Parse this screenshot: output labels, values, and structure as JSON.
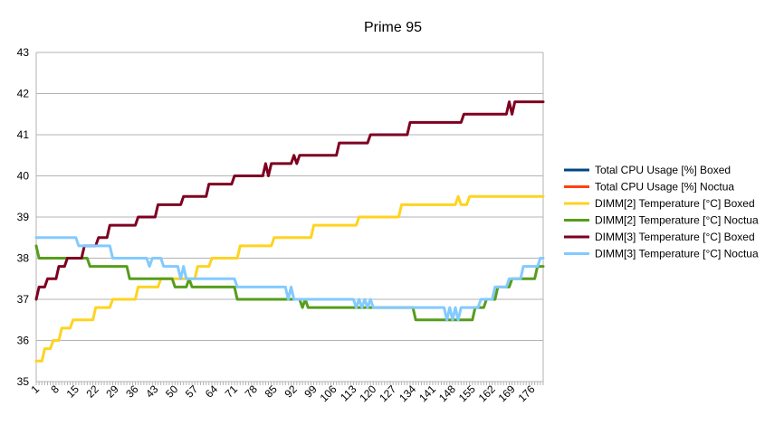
{
  "chart_data": {
    "type": "line",
    "title": "Prime 95",
    "xlabel": "",
    "ylabel": "",
    "ylim": [
      35,
      43
    ],
    "yticks": [
      35,
      36,
      37,
      38,
      39,
      40,
      41,
      42,
      43
    ],
    "xlim": [
      1,
      180
    ],
    "xticks": [
      1,
      8,
      15,
      22,
      29,
      36,
      43,
      50,
      57,
      64,
      71,
      78,
      85,
      92,
      99,
      106,
      113,
      120,
      127,
      134,
      141,
      148,
      155,
      162,
      169,
      176
    ],
    "grid": "horizontal",
    "legend_position": "right",
    "series": [
      {
        "name": "Total CPU Usage [%] Boxed",
        "color": "#004586",
        "points": []
      },
      {
        "name": "Total CPU Usage [%] Noctua",
        "color": "#ff420e",
        "points": []
      },
      {
        "name": "DIMM[2] Temperature [°C] Boxed",
        "color": "#ffd320",
        "points": [
          [
            1,
            35.5
          ],
          [
            3,
            35.5
          ],
          [
            4,
            35.8
          ],
          [
            6,
            35.8
          ],
          [
            7,
            36
          ],
          [
            9,
            36
          ],
          [
            10,
            36.3
          ],
          [
            13,
            36.3
          ],
          [
            14,
            36.5
          ],
          [
            21,
            36.5
          ],
          [
            22,
            36.8
          ],
          [
            27,
            36.8
          ],
          [
            28,
            37
          ],
          [
            36,
            37
          ],
          [
            37,
            37.3
          ],
          [
            44,
            37.3
          ],
          [
            45,
            37.5
          ],
          [
            57,
            37.5
          ],
          [
            58,
            37.8
          ],
          [
            62,
            37.8
          ],
          [
            63,
            38
          ],
          [
            72,
            38
          ],
          [
            73,
            38.3
          ],
          [
            84,
            38.3
          ],
          [
            85,
            38.5
          ],
          [
            98,
            38.5
          ],
          [
            99,
            38.8
          ],
          [
            114,
            38.8
          ],
          [
            115,
            39
          ],
          [
            129,
            39
          ],
          [
            130,
            39.3
          ],
          [
            149,
            39.3
          ],
          [
            150,
            39.5
          ],
          [
            151,
            39.3
          ],
          [
            153,
            39.3
          ],
          [
            154,
            39.5
          ],
          [
            180,
            39.5
          ]
        ]
      },
      {
        "name": "DIMM[2] Temperature [°C] Noctua",
        "color": "#579d1c",
        "points": [
          [
            1,
            38.3
          ],
          [
            2,
            38
          ],
          [
            19,
            38
          ],
          [
            20,
            37.8
          ],
          [
            33,
            37.8
          ],
          [
            34,
            37.5
          ],
          [
            49,
            37.5
          ],
          [
            50,
            37.3
          ],
          [
            54,
            37.3
          ],
          [
            55,
            37.5
          ],
          [
            56,
            37.3
          ],
          [
            71,
            37.3
          ],
          [
            72,
            37
          ],
          [
            94,
            37
          ],
          [
            95,
            36.8
          ],
          [
            96,
            37
          ],
          [
            97,
            36.8
          ],
          [
            134,
            36.8
          ],
          [
            135,
            36.5
          ],
          [
            155,
            36.5
          ],
          [
            156,
            36.8
          ],
          [
            159,
            36.8
          ],
          [
            160,
            37
          ],
          [
            163,
            37
          ],
          [
            164,
            37.3
          ],
          [
            168,
            37.3
          ],
          [
            169,
            37.5
          ],
          [
            177,
            37.5
          ],
          [
            178,
            37.8
          ],
          [
            180,
            37.8
          ]
        ]
      },
      {
        "name": "DIMM[3] Temperature [°C] Boxed",
        "color": "#7e0021",
        "points": [
          [
            1,
            37
          ],
          [
            2,
            37.3
          ],
          [
            4,
            37.3
          ],
          [
            5,
            37.5
          ],
          [
            8,
            37.5
          ],
          [
            9,
            37.8
          ],
          [
            11,
            37.8
          ],
          [
            12,
            38
          ],
          [
            17,
            38
          ],
          [
            18,
            38.3
          ],
          [
            22,
            38.3
          ],
          [
            23,
            38.5
          ],
          [
            26,
            38.5
          ],
          [
            27,
            38.8
          ],
          [
            36,
            38.8
          ],
          [
            37,
            39
          ],
          [
            43,
            39
          ],
          [
            44,
            39.3
          ],
          [
            52,
            39.3
          ],
          [
            53,
            39.5
          ],
          [
            61,
            39.5
          ],
          [
            62,
            39.8
          ],
          [
            70,
            39.8
          ],
          [
            71,
            40
          ],
          [
            81,
            40
          ],
          [
            82,
            40.3
          ],
          [
            83,
            40
          ],
          [
            84,
            40.3
          ],
          [
            91,
            40.3
          ],
          [
            92,
            40.5
          ],
          [
            93,
            40.3
          ],
          [
            94,
            40.5
          ],
          [
            107,
            40.5
          ],
          [
            108,
            40.8
          ],
          [
            118,
            40.8
          ],
          [
            119,
            41
          ],
          [
            132,
            41
          ],
          [
            133,
            41.3
          ],
          [
            151,
            41.3
          ],
          [
            152,
            41.5
          ],
          [
            167,
            41.5
          ],
          [
            168,
            41.8
          ],
          [
            169,
            41.5
          ],
          [
            170,
            41.8
          ],
          [
            180,
            41.8
          ]
        ]
      },
      {
        "name": "DIMM[3] Temperature [°C] Noctua",
        "color": "#83caff",
        "points": [
          [
            1,
            38.5
          ],
          [
            15,
            38.5
          ],
          [
            16,
            38.3
          ],
          [
            27,
            38.3
          ],
          [
            28,
            38
          ],
          [
            40,
            38
          ],
          [
            41,
            37.8
          ],
          [
            42,
            38
          ],
          [
            45,
            38
          ],
          [
            46,
            37.8
          ],
          [
            51,
            37.8
          ],
          [
            52,
            37.5
          ],
          [
            53,
            37.8
          ],
          [
            54,
            37.5
          ],
          [
            71,
            37.5
          ],
          [
            72,
            37.3
          ],
          [
            89,
            37.3
          ],
          [
            90,
            37
          ],
          [
            91,
            37.3
          ],
          [
            92,
            37
          ],
          [
            113,
            37
          ],
          [
            114,
            36.8
          ],
          [
            115,
            37
          ],
          [
            116,
            36.8
          ],
          [
            117,
            37
          ],
          [
            118,
            36.8
          ],
          [
            119,
            37
          ],
          [
            120,
            36.8
          ],
          [
            145,
            36.8
          ],
          [
            146,
            36.5
          ],
          [
            147,
            36.8
          ],
          [
            148,
            36.5
          ],
          [
            149,
            36.8
          ],
          [
            150,
            36.5
          ],
          [
            151,
            36.8
          ],
          [
            157,
            36.8
          ],
          [
            158,
            37
          ],
          [
            162,
            37
          ],
          [
            163,
            37.3
          ],
          [
            167,
            37.3
          ],
          [
            168,
            37.5
          ],
          [
            172,
            37.5
          ],
          [
            173,
            37.8
          ],
          [
            178,
            37.8
          ],
          [
            179,
            38
          ],
          [
            180,
            38
          ]
        ]
      }
    ]
  }
}
